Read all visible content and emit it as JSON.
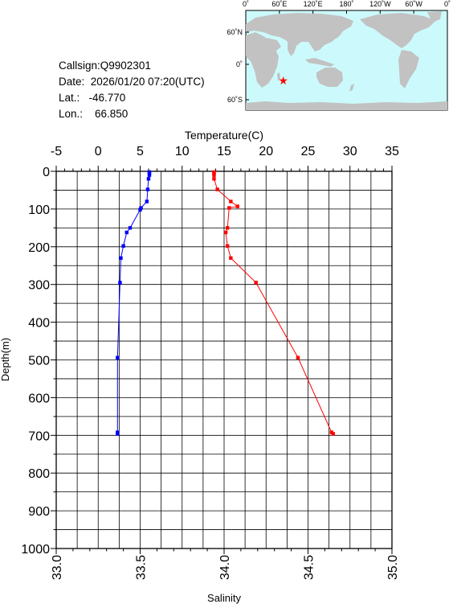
{
  "station": {
    "callsign": "Callsign:Q9902301",
    "date": "Date:  2026/01/20 07:20(UTC)",
    "lat": "Lat.:   -46.770",
    "lon": "Lon.:    66.850"
  },
  "map": {
    "lon_labels": [
      "0˚",
      "60˚E",
      "120˚E",
      "180˚",
      "120˚W",
      "60˚W",
      "0˚"
    ],
    "lat_labels": [
      "60˚N",
      "0˚",
      "60˚S"
    ],
    "ocean_color": "#ccfafc",
    "land_color": "#c2c2c2",
    "marker_color": "#ff0000",
    "marker": {
      "lon": 66.85,
      "lat": -46.77
    }
  },
  "chart_data": {
    "type": "line",
    "top_axis": {
      "label": "Temperature(C)",
      "range": [
        -5,
        35
      ],
      "ticks": [
        "-5",
        "0",
        "5",
        "10",
        "15",
        "20",
        "25",
        "30",
        "35"
      ]
    },
    "bottom_axis": {
      "label": "Salinity",
      "range": [
        33.0,
        35.0
      ],
      "ticks": [
        "33.0",
        "33.5",
        "34.0",
        "34.5",
        "35.0"
      ]
    },
    "y_axis": {
      "label": "Depth(m)",
      "range": [
        0,
        1000
      ],
      "inverted": true,
      "ticks": [
        "0",
        "100",
        "200",
        "300",
        "400",
        "500",
        "600",
        "700",
        "800",
        "900",
        "1000"
      ]
    },
    "grid": true,
    "series": [
      {
        "name": "Temperature",
        "axis": "top",
        "color": "#0000ff",
        "points": [
          [
            6.1,
            2
          ],
          [
            6.1,
            5
          ],
          [
            6.1,
            10
          ],
          [
            6.0,
            20
          ],
          [
            5.9,
            48
          ],
          [
            5.8,
            80
          ],
          [
            5.1,
            97
          ],
          [
            5.0,
            102
          ],
          [
            3.8,
            150
          ],
          [
            3.4,
            162
          ],
          [
            3.0,
            198
          ],
          [
            2.7,
            230
          ],
          [
            2.6,
            295
          ],
          [
            2.3,
            494
          ],
          [
            2.3,
            692
          ],
          [
            2.3,
            696
          ]
        ]
      },
      {
        "name": "Salinity",
        "axis": "bottom",
        "color": "#ff0000",
        "points": [
          [
            33.94,
            2
          ],
          [
            33.94,
            5
          ],
          [
            33.94,
            10
          ],
          [
            33.94,
            20
          ],
          [
            33.96,
            48
          ],
          [
            34.04,
            80
          ],
          [
            34.08,
            93
          ],
          [
            34.03,
            97
          ],
          [
            34.02,
            150
          ],
          [
            34.01,
            162
          ],
          [
            34.02,
            198
          ],
          [
            34.04,
            230
          ],
          [
            34.19,
            295
          ],
          [
            34.44,
            494
          ],
          [
            34.64,
            692
          ],
          [
            34.65,
            696
          ]
        ]
      }
    ]
  }
}
